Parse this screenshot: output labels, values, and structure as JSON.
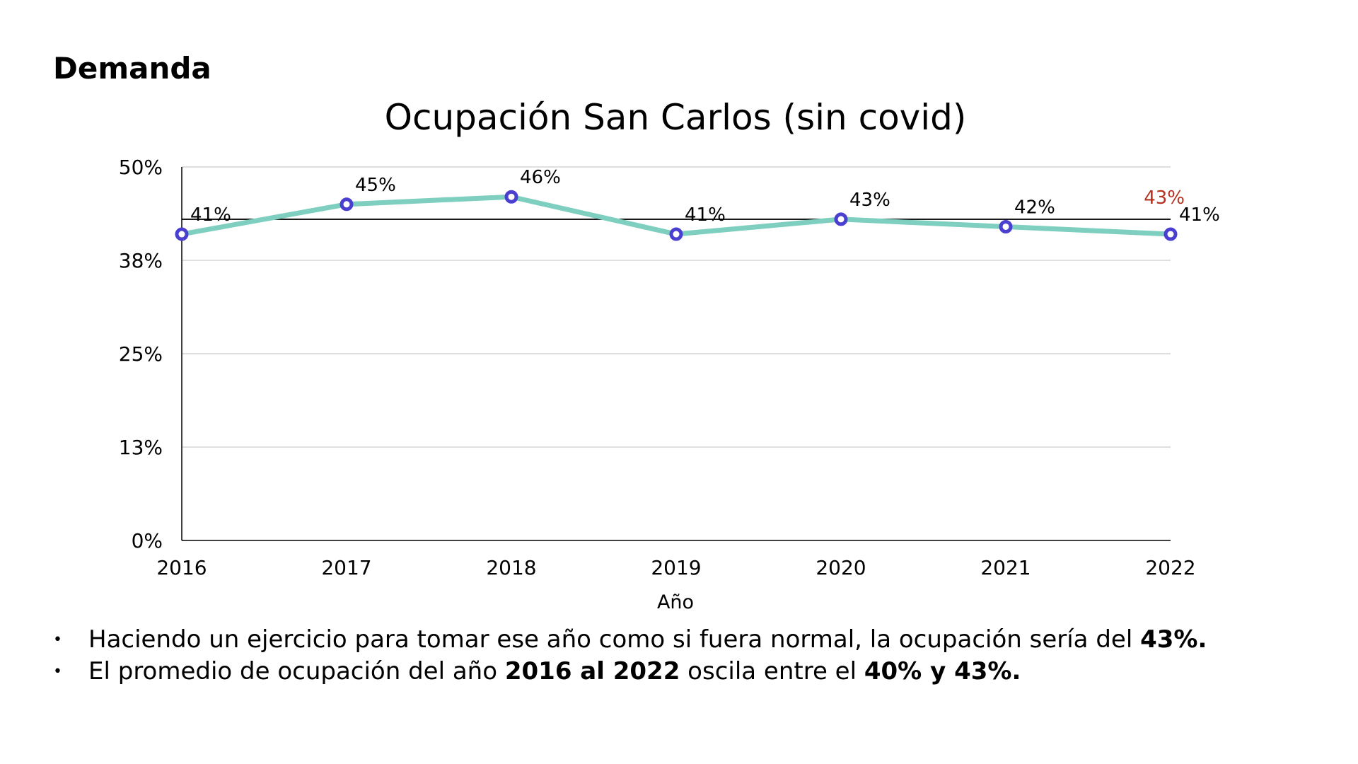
{
  "heading": "Demanda",
  "chart_data": {
    "type": "line",
    "title": "Ocupación San Carlos  (sin covid)",
    "xlabel": "Año",
    "ylabel": "",
    "categories": [
      "2016",
      "2017",
      "2018",
      "2019",
      "2020",
      "2021",
      "2022"
    ],
    "values": [
      41,
      45,
      46,
      41,
      43,
      42,
      41
    ],
    "data_labels": [
      "41%",
      "45%",
      "46%",
      "41%",
      "43%",
      "42%",
      "41%"
    ],
    "ylim": [
      0,
      50
    ],
    "yticks": [
      0,
      12.5,
      25,
      37.5,
      50
    ],
    "ytick_labels": [
      "0%",
      "13%",
      "25%",
      "38%",
      "50%"
    ],
    "grid": true,
    "reference_line": {
      "value": 43,
      "label": "43%",
      "label_color": "#b5301e"
    },
    "colors": {
      "line": "#7ecfbf",
      "marker": "#4a3fcf",
      "grid": "#cccccc",
      "reference": "#000000"
    }
  },
  "bullets": [
    {
      "parts": [
        {
          "text": "Haciendo un ejercicio para tomar ese año como si fuera normal, la ocupación sería del ",
          "bold": false
        },
        {
          "text": "43%.",
          "bold": true
        }
      ]
    },
    {
      "parts": [
        {
          "text": "El promedio de ocupación del año ",
          "bold": false
        },
        {
          "text": "2016 al 2022",
          "bold": true
        },
        {
          "text": " oscila entre el ",
          "bold": false
        },
        {
          "text": "40% y 43%.",
          "bold": true
        }
      ]
    }
  ],
  "bullet_symbol": "•"
}
